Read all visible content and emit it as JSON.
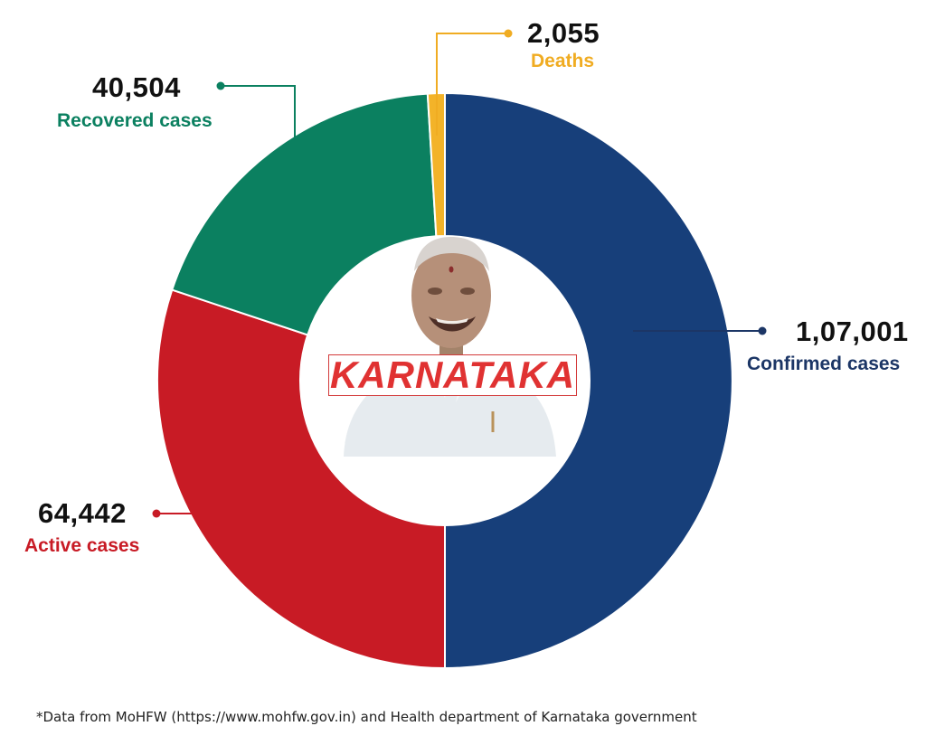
{
  "chart_data": {
    "type": "pie",
    "title": "",
    "center_label": "KARNATAKA",
    "slices": [
      {
        "key": "confirmed",
        "label": "Confirmed cases",
        "display": "1,07,001",
        "value": 107001,
        "color": "#173f7a",
        "text_color": "#1c3666"
      },
      {
        "key": "active",
        "label": "Active cases",
        "display": "64,442",
        "value": 64442,
        "color": "#c81b25",
        "text_color": "#c81b25"
      },
      {
        "key": "recovered",
        "label": "Recovered cases",
        "display": "40,504",
        "value": 40504,
        "color": "#0b8060",
        "text_color": "#0b8060"
      },
      {
        "key": "deaths",
        "label": "Deaths",
        "display": "2,055",
        "value": 2055,
        "color": "#f3b329",
        "text_color": "#f0ac22"
      }
    ]
  },
  "footnote": "*Data from MoHFW (https://www.mohfw.gov.in) and Health department of Karnataka government"
}
